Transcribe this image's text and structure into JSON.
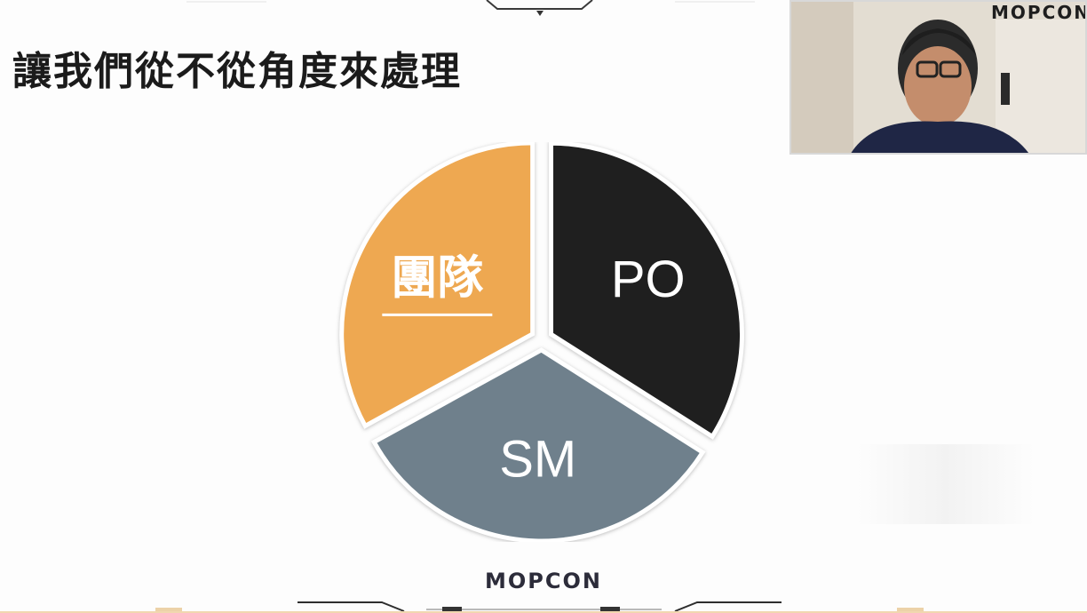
{
  "slide": {
    "title": "讓我們從不從角度來處理",
    "footer_logo": "MOPCON"
  },
  "chart_data": {
    "type": "pie",
    "title": "",
    "slices": [
      {
        "label": "PO",
        "value": 34,
        "color": "#1f1f1f"
      },
      {
        "label": "SM",
        "value": 33,
        "color": "#6f808c"
      },
      {
        "label": "團隊",
        "value": 33,
        "color": "#eea851",
        "underlined": true
      }
    ],
    "exploded": true,
    "legend": "none"
  },
  "webcam": {
    "logo": "MOPCON"
  },
  "colors": {
    "accent_orange": "#eea851",
    "dark": "#1f1f1f",
    "slate": "#6f808c"
  }
}
